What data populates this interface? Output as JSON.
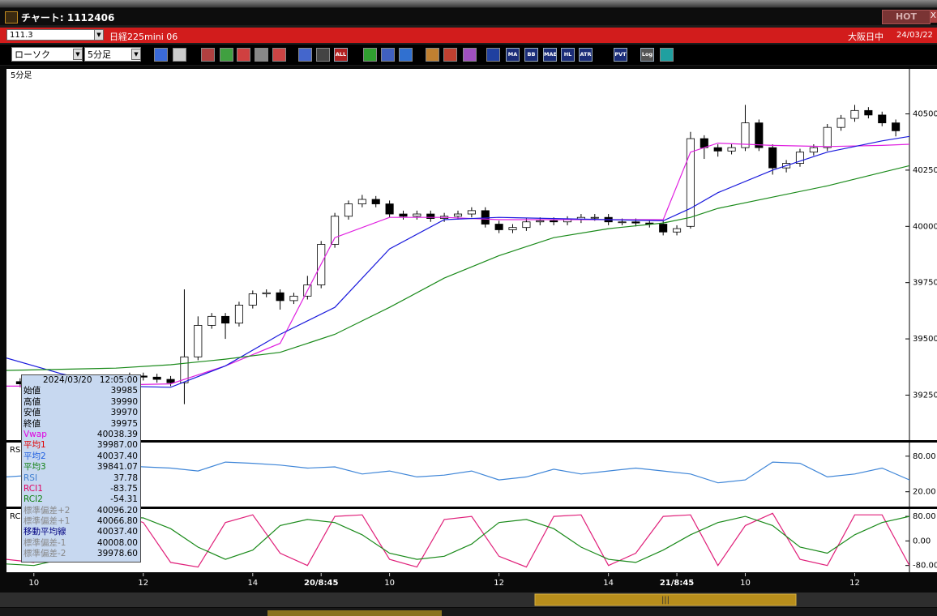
{
  "window": {
    "title": "チャート: 1112406",
    "hot_button": "HOT",
    "close_button": "X"
  },
  "symbol_bar": {
    "code": "111.3",
    "name": "日経225mini 06",
    "session": "大阪日中",
    "date": "24/03/22"
  },
  "toolbar": {
    "chart_style": "ローソク",
    "interval": "5分足",
    "buttons": [
      "ALL",
      "MA",
      "BB",
      "MAE",
      "HL",
      "ATR",
      "PVT",
      "Log"
    ]
  },
  "chart_label": "5分足",
  "info_box": {
    "date": "2024/03/20",
    "time": "12:05:00",
    "rows": [
      {
        "label": "始値",
        "value": "39985",
        "color": "#000000"
      },
      {
        "label": "高値",
        "value": "39990",
        "color": "#000000"
      },
      {
        "label": "安値",
        "value": "39970",
        "color": "#000000"
      },
      {
        "label": "終値",
        "value": "39975",
        "color": "#000000"
      },
      {
        "label": "Vwap",
        "value": "40038.39",
        "color": "#e000e0"
      },
      {
        "label": "平均1",
        "value": "39987.00",
        "color": "#e00000"
      },
      {
        "label": "平均2",
        "value": "40037.40",
        "color": "#2060e0"
      },
      {
        "label": "平均3",
        "value": "39841.07",
        "color": "#108010"
      },
      {
        "label": "RSI",
        "value": "37.78",
        "color": "#4080d0"
      },
      {
        "label": "RCI1",
        "value": "-83.75",
        "color": "#e00060"
      },
      {
        "label": "RCI2",
        "value": "-54.31",
        "color": "#108010"
      },
      {
        "label": "標準偏差+2",
        "value": "40096.20",
        "color": "#888888"
      },
      {
        "label": "標準偏差+1",
        "value": "40066.80",
        "color": "#888888"
      },
      {
        "label": "移動平均線",
        "value": "40037.40",
        "color": "#000080"
      },
      {
        "label": "標準偏差-1",
        "value": "40008.00",
        "color": "#888888"
      },
      {
        "label": "標準偏差-2",
        "value": "39978.60",
        "color": "#888888"
      }
    ]
  },
  "chart_data": [
    {
      "type": "candlestick",
      "xlim": [
        -2,
        64
      ],
      "xticks": [
        {
          "value": 0,
          "label": "10"
        },
        {
          "value": 8,
          "label": "12"
        },
        {
          "value": 16,
          "label": "14"
        },
        {
          "value": 21,
          "label": "20/8:45"
        },
        {
          "value": 26,
          "label": "10"
        },
        {
          "value": 34,
          "label": "12"
        },
        {
          "value": 42,
          "label": "14"
        },
        {
          "value": 47,
          "label": "21/8:45"
        },
        {
          "value": 52,
          "label": "10"
        },
        {
          "value": 60,
          "label": "12"
        }
      ],
      "ylim": [
        39050,
        40700
      ],
      "yticks": [
        40500,
        40250,
        40000,
        39750,
        39500,
        39250
      ],
      "candles": {
        "up_color": "#ffffff",
        "down_color": "#000000",
        "x": [
          -1,
          0,
          1,
          2,
          3,
          4,
          5,
          6,
          7,
          8,
          9,
          10,
          11,
          12,
          13,
          14,
          15,
          16,
          17,
          18,
          19,
          20,
          21,
          22,
          23,
          24,
          25,
          26,
          27,
          28,
          29,
          30,
          31,
          32,
          33,
          34,
          35,
          36,
          37,
          38,
          39,
          40,
          41,
          42,
          43,
          44,
          45,
          46,
          47,
          48,
          49,
          50,
          51,
          52,
          53,
          54,
          55,
          56,
          57,
          58,
          59,
          60,
          61,
          62,
          63
        ],
        "open": [
          39310,
          39300,
          39270,
          39280,
          39290,
          39275,
          39285,
          39300,
          39310,
          39335,
          39330,
          39320,
          39305,
          39420,
          39560,
          39600,
          39570,
          39650,
          39700,
          39705,
          39670,
          39690,
          39740,
          39920,
          40045,
          40100,
          40120,
          40100,
          40055,
          40045,
          40055,
          40035,
          40045,
          40055,
          40070,
          40010,
          39985,
          39995,
          40020,
          40025,
          40020,
          40030,
          40040,
          40040,
          40020,
          40020,
          40015,
          40010,
          39975,
          40000,
          40390,
          40350,
          40335,
          40350,
          40460,
          40350,
          40260,
          40280,
          40330,
          40350,
          40440,
          40480,
          40515,
          40495,
          40460
        ],
        "high": [
          39325,
          39315,
          39295,
          39305,
          39305,
          39300,
          39315,
          39325,
          39350,
          39350,
          39345,
          39335,
          39720,
          39600,
          39615,
          39615,
          39665,
          39715,
          39720,
          39720,
          39705,
          39780,
          39935,
          40060,
          40115,
          40140,
          40135,
          40115,
          40070,
          40070,
          40070,
          40060,
          40070,
          40085,
          40085,
          40025,
          40010,
          40035,
          40040,
          40040,
          40045,
          40055,
          40055,
          40055,
          40035,
          40035,
          40030,
          40025,
          40005,
          40420,
          40405,
          40365,
          40365,
          40540,
          40475,
          40365,
          40295,
          40345,
          40365,
          40455,
          40495,
          40540,
          40530,
          40510,
          40475
        ],
        "low": [
          39285,
          39255,
          39255,
          39265,
          39260,
          39260,
          39270,
          39285,
          39295,
          39315,
          39305,
          39290,
          39210,
          39405,
          39545,
          39500,
          39555,
          39635,
          39685,
          39630,
          39655,
          39675,
          39725,
          39905,
          40030,
          40085,
          40085,
          40040,
          40030,
          40030,
          40020,
          40020,
          40030,
          40040,
          39995,
          39970,
          39970,
          39980,
          40005,
          40005,
          40005,
          40015,
          40025,
          40005,
          40005,
          40000,
          39995,
          39960,
          39960,
          39990,
          40300,
          40310,
          40320,
          40335,
          40335,
          40230,
          40240,
          40265,
          40315,
          40335,
          40425,
          40465,
          40480,
          40445,
          40400
        ],
        "close": [
          39300,
          39270,
          39280,
          39290,
          39275,
          39285,
          39300,
          39310,
          39335,
          39330,
          39320,
          39305,
          39420,
          39560,
          39600,
          39570,
          39650,
          39700,
          39705,
          39670,
          39690,
          39740,
          39920,
          40045,
          40100,
          40120,
          40100,
          40055,
          40045,
          40055,
          40035,
          40045,
          40055,
          40070,
          40010,
          39985,
          39995,
          40020,
          40025,
          40020,
          40030,
          40040,
          40040,
          40020,
          40020,
          40015,
          40010,
          39975,
          39990,
          40390,
          40350,
          40335,
          40350,
          40460,
          40350,
          40260,
          40280,
          40330,
          40350,
          40440,
          40480,
          40515,
          40495,
          40460,
          40425
        ]
      },
      "series": [
        {
          "color": "#e020e0",
          "x": [
            -2,
            2,
            6,
            10,
            14,
            18,
            22,
            26,
            30,
            34,
            38,
            42,
            46,
            48,
            50,
            54,
            58,
            62,
            64
          ],
          "values": [
            39290,
            39290,
            39295,
            39300,
            39380,
            39480,
            39950,
            40040,
            40040,
            40030,
            40030,
            40030,
            40030,
            40330,
            40370,
            40360,
            40355,
            40360,
            40365
          ]
        },
        {
          "color": "#1a1adc",
          "x": [
            -2,
            2,
            6,
            10,
            14,
            18,
            22,
            26,
            30,
            34,
            38,
            42,
            46,
            48,
            50,
            54,
            58,
            62,
            64
          ],
          "values": [
            39415,
            39345,
            39290,
            39285,
            39380,
            39520,
            39640,
            39900,
            40030,
            40040,
            40035,
            40030,
            40025,
            40080,
            40150,
            40250,
            40330,
            40380,
            40400
          ]
        },
        {
          "color": "#1a8a1a",
          "x": [
            -2,
            2,
            6,
            10,
            14,
            18,
            22,
            26,
            30,
            34,
            38,
            42,
            46,
            48,
            50,
            54,
            58,
            62,
            64
          ],
          "values": [
            39360,
            39365,
            39370,
            39385,
            39410,
            39440,
            39520,
            39640,
            39770,
            39870,
            39950,
            39990,
            40015,
            40040,
            40080,
            40130,
            40180,
            40240,
            40270
          ]
        }
      ]
    },
    {
      "type": "line",
      "title": "RSI",
      "xlim": [
        -2,
        64
      ],
      "ylim": [
        -5,
        103
      ],
      "yticks": [
        {
          "value": 80,
          "label": "80.00"
        },
        {
          "value": 20,
          "label": "20.00"
        }
      ],
      "series": [
        {
          "color": "#3f86d8",
          "x": [
            -2,
            0,
            2,
            4,
            6,
            8,
            10,
            12,
            14,
            16,
            18,
            20,
            22,
            24,
            26,
            28,
            30,
            32,
            34,
            36,
            38,
            40,
            42,
            44,
            46,
            48,
            50,
            52,
            54,
            56,
            58,
            60,
            62,
            64
          ],
          "values": [
            45,
            48,
            50,
            60,
            65,
            62,
            60,
            55,
            70,
            68,
            65,
            60,
            62,
            50,
            55,
            45,
            48,
            55,
            40,
            45,
            58,
            50,
            55,
            60,
            55,
            50,
            35,
            40,
            70,
            68,
            45,
            50,
            60,
            40
          ]
        }
      ]
    },
    {
      "type": "line",
      "title": "RCI",
      "xlim": [
        -2,
        64
      ],
      "ylim": [
        -102,
        104
      ],
      "yticks": [
        {
          "value": 80,
          "label": "80.00"
        },
        {
          "value": 0,
          "label": "0.00"
        },
        {
          "value": -80,
          "label": "-80.00"
        }
      ],
      "series": [
        {
          "color": "#e0207a",
          "x": [
            -2,
            0,
            2,
            4,
            6,
            8,
            10,
            12,
            14,
            16,
            18,
            20,
            22,
            24,
            26,
            28,
            30,
            32,
            34,
            36,
            38,
            40,
            42,
            44,
            46,
            48,
            50,
            52,
            54,
            56,
            58,
            60,
            62,
            64
          ],
          "values": [
            -60,
            -70,
            40,
            85,
            90,
            60,
            -70,
            -85,
            60,
            85,
            -40,
            -80,
            80,
            85,
            -60,
            -85,
            70,
            80,
            -50,
            -85,
            80,
            85,
            -80,
            -40,
            80,
            85,
            -80,
            50,
            90,
            -60,
            -80,
            85,
            85,
            -80
          ]
        },
        {
          "color": "#1a8a1a",
          "x": [
            -2,
            0,
            2,
            4,
            6,
            8,
            10,
            12,
            14,
            16,
            18,
            20,
            22,
            24,
            26,
            28,
            30,
            32,
            34,
            36,
            38,
            40,
            42,
            44,
            46,
            48,
            50,
            52,
            54,
            56,
            58,
            60,
            62,
            64
          ],
          "values": [
            -75,
            -80,
            -60,
            60,
            80,
            75,
            40,
            -20,
            -60,
            -30,
            50,
            70,
            60,
            20,
            -40,
            -60,
            -50,
            -10,
            60,
            70,
            40,
            -20,
            -60,
            -70,
            -30,
            20,
            60,
            80,
            50,
            -20,
            -40,
            20,
            60,
            80
          ]
        }
      ]
    }
  ]
}
